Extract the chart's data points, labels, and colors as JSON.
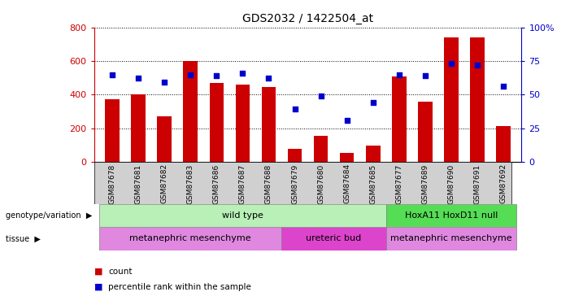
{
  "title": "GDS2032 / 1422504_at",
  "samples": [
    "GSM87678",
    "GSM87681",
    "GSM87682",
    "GSM87683",
    "GSM87686",
    "GSM87687",
    "GSM87688",
    "GSM87679",
    "GSM87680",
    "GSM87684",
    "GSM87685",
    "GSM87677",
    "GSM87689",
    "GSM87690",
    "GSM87691",
    "GSM87692"
  ],
  "counts": [
    370,
    400,
    270,
    600,
    470,
    460,
    445,
    75,
    155,
    50,
    95,
    510,
    360,
    740,
    740,
    210
  ],
  "percentiles": [
    65,
    62,
    59,
    65,
    64,
    66,
    62,
    39,
    49,
    31,
    44,
    65,
    64,
    73,
    72,
    56
  ],
  "bar_color": "#cc0000",
  "dot_color": "#0000cc",
  "ylim_left": [
    0,
    800
  ],
  "ylim_right": [
    0,
    100
  ],
  "yticks_left": [
    0,
    200,
    400,
    600,
    800
  ],
  "yticks_right": [
    0,
    25,
    50,
    75,
    100
  ],
  "genotype_groups": [
    {
      "label": "wild type",
      "start": 0,
      "end": 10,
      "color": "#b8f0b8"
    },
    {
      "label": "HoxA11 HoxD11 null",
      "start": 11,
      "end": 15,
      "color": "#55dd55"
    }
  ],
  "tissue_groups": [
    {
      "label": "metanephric mesenchyme",
      "start": 0,
      "end": 6,
      "color": "#e088e0"
    },
    {
      "label": "ureteric bud",
      "start": 7,
      "end": 10,
      "color": "#dd44cc"
    },
    {
      "label": "metanephric mesenchyme",
      "start": 11,
      "end": 15,
      "color": "#e088e0"
    }
  ],
  "legend_count_color": "#cc0000",
  "legend_dot_color": "#0000cc",
  "right_axis_color": "#0000cc",
  "left_axis_color": "#cc0000"
}
